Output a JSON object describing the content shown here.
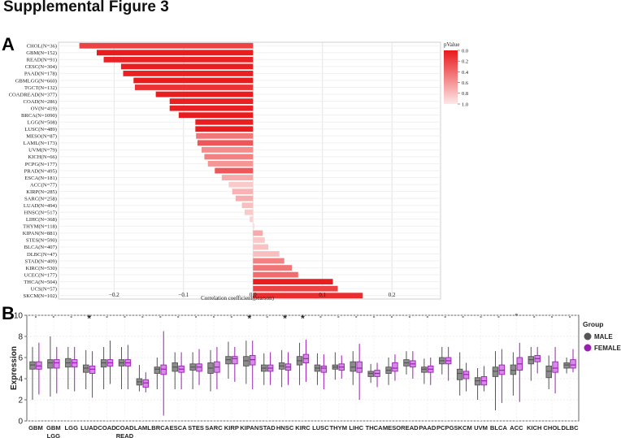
{
  "figure_title": "Supplemental Figure 3",
  "panel_a_letter": "A",
  "panel_b_letter": "B",
  "chart_data": [
    {
      "type": "bar",
      "orientation": "horizontal",
      "xlabel": "Correlation coefficient(pearson)",
      "xlim": [
        -0.28,
        0.27
      ],
      "xticks": [
        -0.2,
        -0.1,
        0.0,
        0.1,
        0.2
      ],
      "xtick_labels": [
        "−0.2",
        "−0.1",
        "0.0",
        "0.1",
        "0.2"
      ],
      "grid": true,
      "legend_title": "pValue",
      "legend_ticks": [
        "0.0",
        "0.2",
        "0.4",
        "0.6",
        "0.8",
        "1.0"
      ],
      "color_low_p": "#e8191b",
      "color_high_p": "#fde8e8",
      "categories": [
        "CHOL(N=36)",
        "GBM(N=152)",
        "READ(N=91)",
        "CESC(N=304)",
        "PAAD(N=178)",
        "GBMLGG(N=660)",
        "TGCT(N=132)",
        "COADREAD(N=377)",
        "COAD(N=286)",
        "OV(N=419)",
        "BRCA(N=1090)",
        "LGG(N=508)",
        "LUSC(N=489)",
        "MESO(N=87)",
        "LAML(N=173)",
        "UVM(N=79)",
        "KICH(N=66)",
        "PCPG(N=177)",
        "PRAD(N=495)",
        "ESCA(N=181)",
        "ACC(N=77)",
        "KIRP(N=285)",
        "SARC(N=258)",
        "LUAD(N=494)",
        "HNSC(N=517)",
        "LIHC(N=368)",
        "THYM(N=118)",
        "KIPAN(N=881)",
        "STES(N=590)",
        "BLCA(N=407)",
        "DLBC(N=47)",
        "STAD(N=409)",
        "KIRC(N=530)",
        "UCEC(N=177)",
        "THCA(N=504)",
        "UCS(N=57)",
        "SKCM(N=102)"
      ],
      "values": [
        -0.25,
        -0.225,
        -0.215,
        -0.19,
        -0.187,
        -0.172,
        -0.17,
        -0.14,
        -0.12,
        -0.12,
        -0.107,
        -0.083,
        -0.083,
        -0.082,
        -0.08,
        -0.074,
        -0.07,
        -0.065,
        -0.055,
        -0.045,
        -0.035,
        -0.03,
        -0.025,
        -0.016,
        -0.012,
        -0.005,
        0.002,
        0.014,
        0.017,
        0.022,
        0.038,
        0.045,
        0.056,
        0.065,
        0.115,
        0.122,
        0.158
      ],
      "pvalues": [
        0.2,
        0.01,
        0.05,
        0.02,
        0.04,
        0.01,
        0.12,
        0.02,
        0.04,
        0.03,
        0.01,
        0.03,
        0.02,
        0.45,
        0.3,
        0.55,
        0.5,
        0.6,
        0.3,
        0.7,
        0.85,
        0.75,
        0.72,
        0.8,
        0.85,
        0.9,
        0.95,
        0.7,
        0.85,
        0.82,
        0.8,
        0.5,
        0.45,
        0.4,
        0.02,
        0.2,
        0.1
      ]
    },
    {
      "type": "box",
      "ylabel": "Expression",
      "ylim": [
        0,
        10
      ],
      "yticks": [
        0,
        2,
        4,
        6,
        8,
        10
      ],
      "legend_title": "Group",
      "series": [
        {
          "name": "MALE",
          "color": "#555555",
          "box_fill": "#8c8c8c"
        },
        {
          "name": "FEMALE",
          "color": "#9b1fb5",
          "box_fill": "#d58be6"
        }
      ],
      "categories": [
        "GBM",
        "GBM\nLGG",
        "LGG",
        "LUAD",
        "COAD",
        "COAD\nREAD",
        "LAML",
        "BRCA",
        "ESCA",
        "STES",
        "SARC",
        "KIRP",
        "KIPAN",
        "STAD",
        "HNSC",
        "KIRC",
        "LUSC",
        "THYM",
        "LIHC",
        "THCA",
        "MESO",
        "READ",
        "PAAD",
        "PCPG",
        "SKCM",
        "UVM",
        "BLCA",
        "ACC",
        "KICH",
        "CHOL",
        "DLBC"
      ],
      "significance": [
        "-",
        "-",
        "-",
        "*",
        "-",
        "-",
        "-",
        "-",
        "-",
        "-",
        "-",
        "-",
        "*",
        "-",
        "*",
        "*",
        "-",
        "-",
        "-",
        "-",
        "-",
        "-",
        "-",
        "-",
        "-",
        "-",
        "-",
        "°",
        "-",
        "-",
        "-"
      ],
      "male": [
        [
          2.0,
          4.9,
          5.3,
          5.6,
          7.0
        ],
        [
          2.3,
          5.0,
          5.5,
          5.8,
          8.0
        ],
        [
          3.0,
          5.1,
          5.5,
          5.9,
          7.0
        ],
        [
          3.0,
          4.6,
          5.0,
          5.3,
          6.7
        ],
        [
          3.0,
          5.1,
          5.5,
          5.8,
          7.0
        ],
        [
          3.0,
          5.2,
          5.5,
          5.8,
          7.0
        ],
        [
          2.8,
          3.4,
          3.7,
          4.0,
          5.3
        ],
        [
          3.0,
          4.5,
          4.9,
          5.1,
          6.0
        ],
        [
          3.0,
          4.7,
          5.1,
          5.5,
          6.5
        ],
        [
          3.0,
          4.8,
          5.1,
          5.4,
          6.5
        ],
        [
          2.8,
          4.5,
          5.0,
          5.5,
          6.7
        ],
        [
          4.0,
          5.4,
          5.8,
          6.1,
          7.5
        ],
        [
          3.5,
          5.2,
          5.7,
          6.1,
          7.6
        ],
        [
          3.4,
          4.7,
          5.0,
          5.3,
          6.4
        ],
        [
          3.2,
          4.9,
          5.2,
          5.5,
          6.7
        ],
        [
          3.4,
          5.3,
          5.7,
          6.1,
          7.4
        ],
        [
          3.4,
          4.7,
          5.0,
          5.3,
          6.4
        ],
        [
          3.9,
          4.9,
          5.1,
          5.3,
          6.5
        ],
        [
          3.4,
          4.7,
          5.1,
          5.6,
          6.6
        ],
        [
          3.6,
          4.2,
          4.5,
          4.7,
          5.4
        ],
        [
          3.4,
          4.5,
          4.8,
          5.1,
          6.0
        ],
        [
          4.4,
          5.2,
          5.5,
          5.8,
          6.6
        ],
        [
          3.5,
          4.6,
          4.9,
          5.1,
          5.9
        ],
        [
          4.4,
          5.4,
          5.7,
          6.0,
          7.0
        ],
        [
          2.4,
          3.9,
          4.5,
          4.9,
          6.5
        ],
        [
          2.0,
          3.4,
          3.8,
          4.1,
          5.0
        ],
        [
          1.0,
          4.2,
          4.7,
          5.1,
          6.6
        ],
        [
          2.4,
          4.4,
          4.8,
          5.3,
          6.5
        ],
        [
          3.8,
          5.4,
          5.8,
          6.1,
          7.0
        ],
        [
          3.0,
          4.1,
          4.7,
          5.2,
          6.2
        ],
        [
          4.5,
          5.0,
          5.3,
          5.5,
          6.0
        ]
      ],
      "female": [
        [
          2.5,
          4.9,
          5.2,
          5.6,
          7.4
        ],
        [
          2.6,
          5.0,
          5.5,
          5.8,
          7.0
        ],
        [
          2.8,
          5.1,
          5.5,
          5.8,
          7.0
        ],
        [
          2.2,
          4.5,
          4.9,
          5.2,
          6.6
        ],
        [
          3.5,
          5.2,
          5.5,
          5.8,
          7.6
        ],
        [
          3.0,
          5.2,
          5.5,
          5.8,
          7.2
        ],
        [
          2.7,
          3.2,
          3.6,
          3.9,
          4.6
        ],
        [
          0.5,
          4.4,
          4.9,
          5.3,
          8.5
        ],
        [
          3.0,
          4.6,
          4.9,
          5.2,
          6.5
        ],
        [
          3.4,
          4.7,
          5.1,
          5.4,
          6.8
        ],
        [
          3.0,
          4.6,
          5.1,
          5.6,
          7.0
        ],
        [
          3.7,
          5.4,
          5.9,
          6.1,
          7.0
        ],
        [
          3.0,
          5.3,
          5.8,
          6.2,
          7.6
        ],
        [
          3.4,
          4.7,
          5.0,
          5.3,
          6.5
        ],
        [
          3.4,
          4.8,
          5.1,
          5.4,
          6.5
        ],
        [
          3.7,
          5.5,
          5.9,
          6.3,
          7.7
        ],
        [
          3.0,
          4.6,
          5.0,
          5.2,
          6.3
        ],
        [
          4.0,
          4.8,
          5.1,
          5.4,
          6.2
        ],
        [
          2.0,
          4.6,
          5.0,
          5.6,
          7.3
        ],
        [
          3.2,
          4.2,
          4.5,
          4.8,
          5.5
        ],
        [
          3.8,
          4.7,
          5.0,
          5.5,
          6.3
        ],
        [
          4.0,
          5.1,
          5.4,
          5.7,
          6.6
        ],
        [
          3.4,
          4.6,
          4.9,
          5.2,
          6.0
        ],
        [
          3.8,
          5.4,
          5.7,
          6.0,
          7.0
        ],
        [
          2.8,
          4.0,
          4.4,
          4.7,
          5.5
        ],
        [
          2.8,
          3.4,
          3.8,
          4.2,
          5.2
        ],
        [
          1.7,
          4.4,
          4.8,
          5.3,
          6.8
        ],
        [
          1.8,
          4.8,
          5.4,
          6.0,
          7.4
        ],
        [
          4.5,
          5.6,
          5.9,
          6.2,
          7.0
        ],
        [
          2.6,
          4.6,
          5.0,
          5.6,
          7.0
        ],
        [
          4.6,
          5.0,
          5.3,
          5.8,
          6.8
        ]
      ]
    }
  ]
}
